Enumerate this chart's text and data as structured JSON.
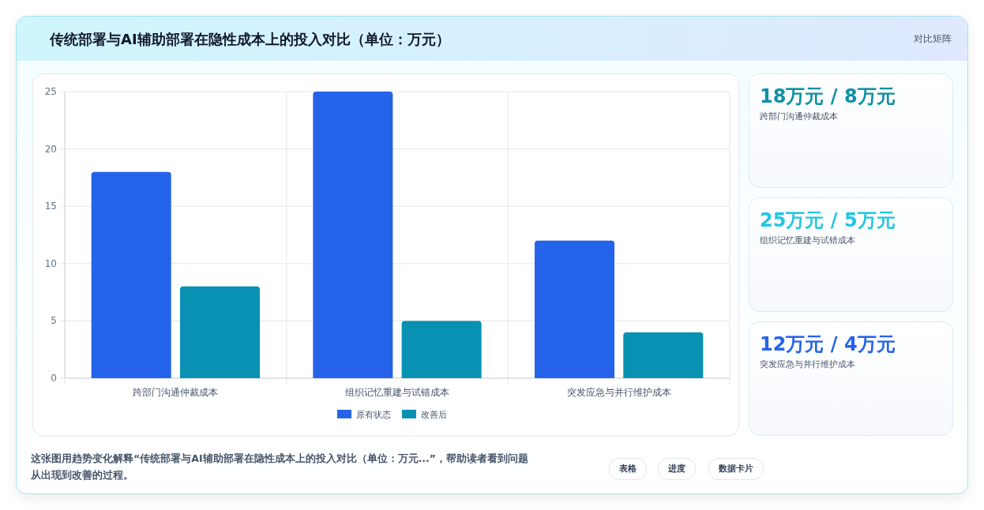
{
  "chart_data": [
    {
      "type": "bar",
      "title": "传统部署与AI辅助部署在隐性成本上的投入对比（单位：万元）",
      "categories": [
        "跨部门沟通仲裁成本",
        "组织记忆重建与试错成本",
        "突发应急与并行维护成本"
      ],
      "series": [
        {
          "name": "原有状态",
          "color": "#2563eb",
          "values": [
            18,
            25,
            12
          ]
        },
        {
          "name": "改善后",
          "color": "#0891b2",
          "values": [
            8,
            5,
            4
          ]
        }
      ],
      "ylim": [
        0,
        25
      ],
      "yticks": [
        0,
        5,
        10,
        15,
        20,
        25
      ],
      "grid": true,
      "legend": "bottom",
      "annotations": [
        "对比矩阵",
        "这张图用趋势变化解释“传统部署与AI辅助部署在隐性成本上的投入对比（单位：万元...”，帮助读者看到问题从出现到改善的过程。",
        "表格",
        "进度",
        "数据卡片"
      ]
    },
    {
      "type": "other",
      "title": "18万元 / 8万元",
      "subtitle": "跨部门沟通仲裁成本",
      "color": "#0e8fa6"
    },
    {
      "type": "other",
      "title": "25万元 / 5万元",
      "subtitle": "组织记忆重建与试错成本",
      "color": "#22c7e0"
    },
    {
      "type": "other",
      "title": "12万元 / 4万元",
      "subtitle": "突发应急与并行维护成本",
      "color": "#2563eb"
    }
  ]
}
